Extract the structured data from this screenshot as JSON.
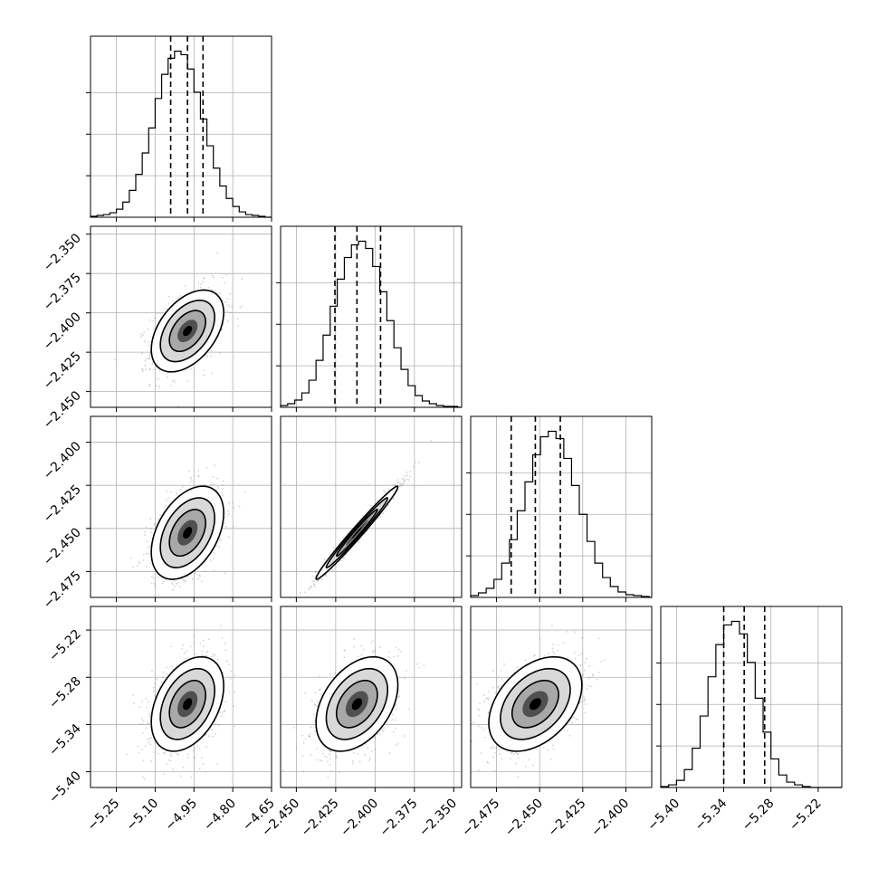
{
  "chart_data": {
    "type": "corner",
    "n_params": 4,
    "panels_note": "lower-triangle corner plot: histograms on diagonal, 2D density + contours off-diagonal",
    "params": [
      {
        "index": 0,
        "range": [
          -5.35,
          -4.65
        ],
        "ticks": [
          "−5.25",
          "−5.10",
          "−4.95",
          "−4.80",
          "−4.65"
        ],
        "tick_values": [
          -5.25,
          -5.1,
          -4.95,
          -4.8,
          -4.65
        ],
        "quantiles": [
          -5.04,
          -4.975,
          -4.915
        ],
        "hist_bins": [
          -5.35,
          -5.325,
          -5.3,
          -5.275,
          -5.25,
          -5.225,
          -5.2,
          -5.175,
          -5.15,
          -5.125,
          -5.1,
          -5.075,
          -5.05,
          -5.025,
          -5.0,
          -4.975,
          -4.95,
          -4.925,
          -4.9,
          -4.875,
          -4.85,
          -4.825,
          -4.8,
          -4.775,
          -4.75,
          -4.725,
          -4.7,
          -4.675,
          -4.65
        ],
        "hist_counts": [
          1,
          2,
          3,
          5,
          9,
          17,
          30,
          48,
          72,
          100,
          133,
          160,
          178,
          186,
          182,
          166,
          140,
          110,
          80,
          55,
          35,
          21,
          12,
          6,
          3,
          2,
          1,
          0
        ]
      },
      {
        "index": 1,
        "range": [
          -2.46,
          -2.345
        ],
        "ticks": [
          "−2.450",
          "−2.425",
          "−2.400",
          "−2.375",
          "−2.350"
        ],
        "tick_values": [
          -2.45,
          -2.425,
          -2.4,
          -2.375,
          -2.35
        ],
        "quantiles": [
          -2.4255,
          -2.4115,
          -2.3965
        ],
        "hist_bins": [
          -2.46,
          -2.4555,
          -2.451,
          -2.4465,
          -2.442,
          -2.4375,
          -2.433,
          -2.4285,
          -2.424,
          -2.4195,
          -2.415,
          -2.4105,
          -2.406,
          -2.4015,
          -2.397,
          -2.3925,
          -2.388,
          -2.3835,
          -2.379,
          -2.3745,
          -2.37,
          -2.3655,
          -2.361,
          -2.3565,
          -2.352,
          -2.3475,
          -2.345
        ],
        "hist_counts": [
          2,
          4,
          8,
          16,
          30,
          52,
          80,
          112,
          142,
          166,
          180,
          184,
          176,
          156,
          128,
          96,
          66,
          42,
          24,
          13,
          7,
          4,
          2,
          1,
          1,
          0
        ]
      },
      {
        "index": 2,
        "range": [
          -2.49,
          -2.385
        ],
        "ticks": [
          "−2.475",
          "−2.450",
          "−2.425",
          "−2.400"
        ],
        "tick_values": [
          -2.475,
          -2.45,
          -2.425,
          -2.4
        ],
        "quantiles": [
          -2.4665,
          -2.4525,
          -2.438
        ],
        "hist_bins": [
          -2.49,
          -2.4855,
          -2.481,
          -2.4765,
          -2.472,
          -2.4675,
          -2.463,
          -2.4585,
          -2.454,
          -2.4495,
          -2.445,
          -2.4405,
          -2.436,
          -2.4315,
          -2.427,
          -2.4225,
          -2.418,
          -2.4135,
          -2.409,
          -2.4045,
          -2.4,
          -2.3955,
          -2.391,
          -2.3865,
          -2.385
        ],
        "hist_counts": [
          2,
          5,
          10,
          20,
          38,
          64,
          96,
          128,
          158,
          178,
          184,
          176,
          154,
          124,
          92,
          62,
          38,
          22,
          12,
          6,
          3,
          2,
          1,
          0
        ]
      },
      {
        "index": 3,
        "range": [
          -5.42,
          -5.19
        ],
        "ticks": [
          "−5.40",
          "−5.34",
          "−5.28",
          "−5.22"
        ],
        "tick_values": [
          -5.4,
          -5.34,
          -5.28,
          -5.22
        ],
        "quantiles": [
          -5.34,
          -5.314,
          -5.288
        ],
        "hist_bins": [
          -5.42,
          -5.41,
          -5.4,
          -5.39,
          -5.38,
          -5.37,
          -5.36,
          -5.35,
          -5.34,
          -5.33,
          -5.32,
          -5.31,
          -5.3,
          -5.29,
          -5.28,
          -5.27,
          -5.26,
          -5.25,
          -5.24,
          -5.23,
          -5.22,
          -5.21,
          -5.2,
          -5.19
        ],
        "hist_counts": [
          1,
          3,
          8,
          20,
          44,
          80,
          124,
          160,
          182,
          186,
          172,
          140,
          100,
          62,
          32,
          14,
          6,
          3,
          1,
          0,
          0,
          0,
          0
        ]
      }
    ],
    "means": [
      -4.975,
      -2.4115,
      -2.4525,
      -5.314
    ],
    "stds": [
      0.07,
      0.013,
      0.0135,
      0.03
    ],
    "correlations": [
      [
        1.0,
        0.45,
        0.42,
        0.38
      ],
      [
        0.45,
        1.0,
        0.985,
        0.4
      ],
      [
        0.42,
        0.985,
        1.0,
        0.4
      ],
      [
        0.38,
        0.4,
        0.4,
        1.0
      ]
    ],
    "grid": true,
    "xlabel": "",
    "ylabel": "",
    "title": ""
  },
  "colors": {
    "background": "#ffffff",
    "line": "#000000",
    "grid": "#b0b0b0",
    "scatter": "#808080",
    "density_low": "#e8e8e8",
    "density_high": "#000000"
  }
}
